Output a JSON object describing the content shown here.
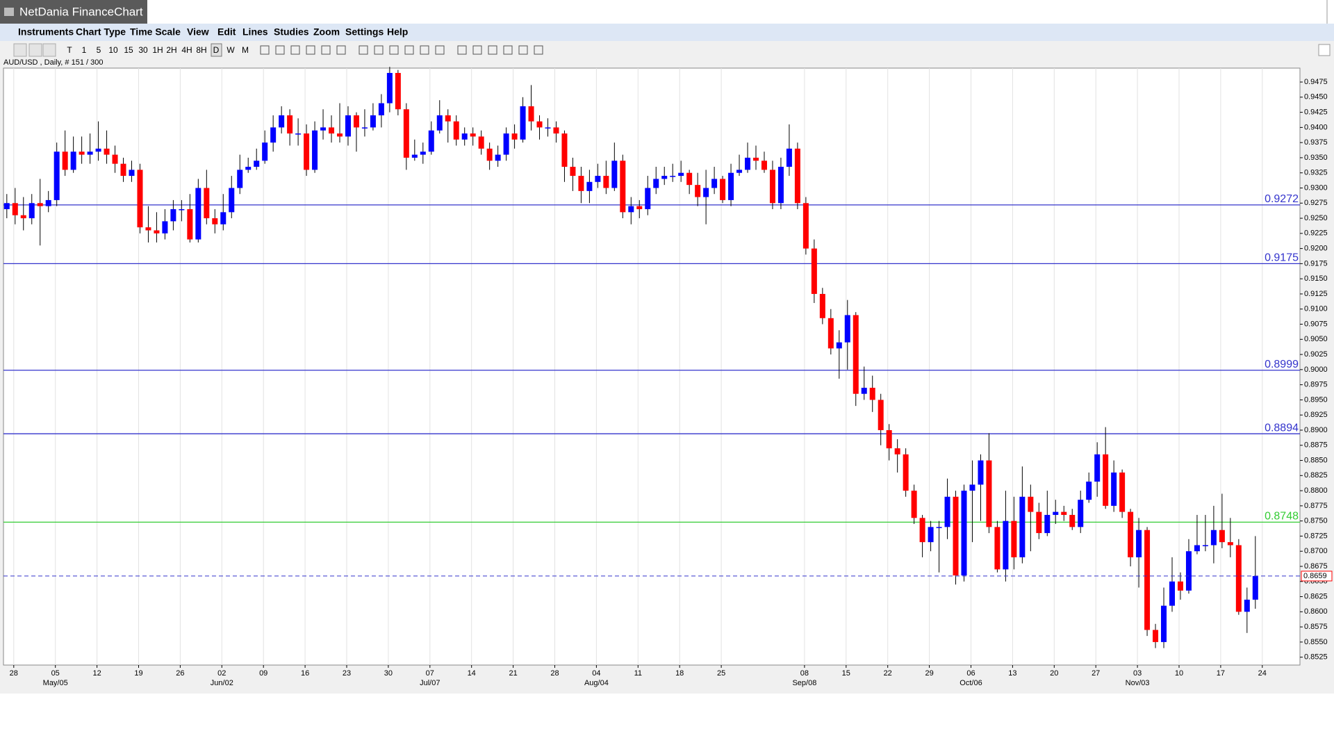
{
  "window": {
    "title": "NetDania FinanceChart",
    "menu": [
      "Instruments",
      "Chart Type",
      "Time Scale",
      "View",
      "Edit",
      "Lines",
      "Studies",
      "Zoom",
      "Settings",
      "Help"
    ],
    "timeframes": [
      "T",
      "1",
      "5",
      "10",
      "15",
      "30",
      "1H",
      "2H",
      "4H",
      "8H",
      "D",
      "W",
      "M"
    ]
  },
  "chart_data": {
    "type": "candlestick",
    "title": "AUD/USD , Daily, # 151 / 300",
    "up_color": "#0000ff",
    "down_color": "#ff0000",
    "categories": [
      "28",
      null,
      null,
      null,
      null,
      "05",
      null,
      null,
      null,
      null,
      "12",
      null,
      null,
      null,
      null,
      "19",
      null,
      null,
      null,
      null,
      "26",
      null,
      null,
      null,
      null,
      "02",
      null,
      null,
      null,
      null,
      "09",
      null,
      null,
      null,
      null,
      "16",
      null,
      null,
      null,
      null,
      "23",
      null,
      null,
      null,
      null,
      "30",
      null,
      null,
      null,
      null,
      "07",
      null,
      null,
      null,
      null,
      "14",
      null,
      null,
      null,
      null,
      "21",
      null,
      null,
      null,
      null,
      "28",
      null,
      null,
      null,
      null,
      "04",
      null,
      null,
      null,
      null,
      "11",
      null,
      null,
      null,
      null,
      "18",
      null,
      null,
      null,
      null,
      "25",
      null,
      null,
      null,
      null,
      null,
      null,
      null,
      null,
      null,
      "08",
      null,
      null,
      null,
      null,
      "15",
      null,
      null,
      null,
      null,
      "22",
      null,
      null,
      null,
      null,
      "29",
      null,
      null,
      null,
      null,
      "06",
      null,
      null,
      null,
      null,
      "13",
      null,
      null,
      null,
      null,
      "20",
      null,
      null,
      null,
      null,
      "27",
      null,
      null,
      null,
      null,
      "03",
      null,
      null,
      null,
      null,
      "10",
      null,
      null,
      null,
      null,
      "17",
      null,
      null,
      null,
      null,
      "24"
    ],
    "month_labels": [
      null,
      null,
      null,
      null,
      null,
      "May/05",
      null,
      null,
      null,
      null,
      null,
      null,
      null,
      null,
      null,
      null,
      null,
      null,
      null,
      null,
      null,
      null,
      null,
      null,
      null,
      "Jun/02",
      null,
      null,
      null,
      null,
      null,
      null,
      null,
      null,
      null,
      null,
      null,
      null,
      null,
      null,
      null,
      null,
      null,
      null,
      null,
      null,
      null,
      null,
      null,
      null,
      "Jul/07",
      null,
      null,
      null,
      null,
      null,
      null,
      null,
      null,
      null,
      null,
      null,
      null,
      null,
      null,
      null,
      null,
      null,
      null,
      null,
      "Aug/04",
      null,
      null,
      null,
      null,
      null,
      null,
      null,
      null,
      null,
      null,
      null,
      null,
      null,
      null,
      null,
      null,
      null,
      null,
      null,
      null,
      null,
      null,
      null,
      null,
      "Sep/08",
      null,
      null,
      null,
      null,
      null,
      null,
      null,
      null,
      null,
      null,
      null,
      null,
      null,
      null,
      null,
      null,
      null,
      null,
      null,
      "Oct/06",
      null,
      null,
      null,
      null,
      null,
      null,
      null,
      null,
      null,
      null,
      null,
      null,
      null,
      null,
      null,
      null,
      null,
      null,
      null,
      "Nov/03",
      null,
      null,
      null,
      null,
      null,
      null,
      null,
      null,
      null,
      null,
      null,
      null,
      null,
      null,
      null
    ],
    "open": [
      0.9265,
      0.9275,
      0.9255,
      0.925,
      0.9275,
      0.927,
      0.928,
      0.936,
      0.933,
      0.936,
      0.9355,
      0.936,
      0.9365,
      0.9355,
      0.934,
      0.932,
      0.933,
      0.9235,
      0.923,
      0.9225,
      0.9245,
      0.9265,
      0.9265,
      0.9215,
      0.93,
      0.925,
      0.924,
      0.926,
      0.93,
      0.933,
      0.9335,
      0.9345,
      0.9375,
      0.94,
      0.942,
      0.939,
      0.939,
      0.933,
      0.9395,
      0.94,
      0.939,
      0.9385,
      0.942,
      0.94,
      0.94,
      0.942,
      0.944,
      0.949,
      0.943,
      0.935,
      0.9355,
      0.936,
      0.9395,
      0.942,
      0.941,
      0.938,
      0.939,
      0.9385,
      0.9365,
      0.9345,
      0.9355,
      0.939,
      0.938,
      0.9435,
      0.941,
      0.94,
      0.94,
      0.939,
      0.9335,
      0.932,
      0.9295,
      0.931,
      0.932,
      0.93,
      0.9345,
      0.926,
      0.927,
      0.9265,
      0.93,
      0.9315,
      0.932,
      0.932,
      0.9325,
      0.9305,
      0.9285,
      0.93,
      0.9315,
      0.928,
      0.9325,
      0.933,
      0.935,
      0.9345,
      0.933,
      0.9275,
      0.9335,
      0.9365,
      0.9275,
      0.92,
      0.9125,
      0.9085,
      0.9035,
      0.9045,
      0.909,
      0.896,
      0.897,
      0.895,
      0.89,
      0.887,
      0.886,
      0.88,
      0.8755,
      0.8715,
      0.874,
      0.874,
      0.879,
      0.866,
      0.88,
      0.881,
      0.885,
      0.874,
      0.867,
      0.875,
      0.869,
      0.879,
      0.8765,
      0.873,
      0.876,
      0.8765,
      0.876,
      0.874,
      0.8785,
      0.8815,
      0.886,
      0.8775,
      0.883,
      0.8765,
      0.869,
      0.8735,
      0.857,
      0.855,
      0.861,
      0.865,
      0.8635,
      0.87,
      0.871,
      0.871,
      0.8735,
      0.8715,
      0.871,
      0.86,
      0.862
    ],
    "high": [
      0.929,
      0.93,
      0.9285,
      0.929,
      0.9315,
      0.9295,
      0.9375,
      0.9395,
      0.9385,
      0.9385,
      0.939,
      0.941,
      0.9395,
      0.937,
      0.935,
      0.9345,
      0.934,
      0.927,
      0.926,
      0.9265,
      0.928,
      0.928,
      0.929,
      0.9315,
      0.933,
      0.9265,
      0.929,
      0.932,
      0.9355,
      0.935,
      0.9365,
      0.9395,
      0.942,
      0.9435,
      0.943,
      0.9415,
      0.9405,
      0.941,
      0.943,
      0.942,
      0.944,
      0.9435,
      0.9425,
      0.943,
      0.944,
      0.9455,
      0.95,
      0.9495,
      0.944,
      0.938,
      0.9375,
      0.941,
      0.9445,
      0.943,
      0.942,
      0.94,
      0.94,
      0.9395,
      0.9375,
      0.937,
      0.94,
      0.9405,
      0.945,
      0.947,
      0.942,
      0.9415,
      0.941,
      0.9395,
      0.935,
      0.9335,
      0.933,
      0.934,
      0.9345,
      0.9375,
      0.9355,
      0.9285,
      0.928,
      0.932,
      0.9335,
      0.9335,
      0.934,
      0.9345,
      0.933,
      0.9325,
      0.933,
      0.9335,
      0.932,
      0.934,
      0.9355,
      0.9375,
      0.937,
      0.936,
      0.9345,
      0.935,
      0.9405,
      0.9375,
      0.9285,
      0.9215,
      0.9135,
      0.91,
      0.9065,
      0.9115,
      0.9095,
      0.9005,
      0.899,
      0.896,
      0.891,
      0.8885,
      0.887,
      0.881,
      0.876,
      0.875,
      0.875,
      0.882,
      0.88,
      0.881,
      0.885,
      0.886,
      0.8895,
      0.875,
      0.88,
      0.879,
      0.884,
      0.881,
      0.878,
      0.88,
      0.8785,
      0.8775,
      0.877,
      0.88,
      0.883,
      0.888,
      0.8905,
      0.885,
      0.8835,
      0.877,
      0.8755,
      0.874,
      0.858,
      0.864,
      0.869,
      0.8665,
      0.872,
      0.876,
      0.876,
      0.8775,
      0.8795,
      0.8755,
      0.872,
      0.864,
      0.8725
    ],
    "low": [
      0.925,
      0.924,
      0.923,
      0.924,
      0.9205,
      0.926,
      0.927,
      0.932,
      0.9325,
      0.934,
      0.934,
      0.9345,
      0.934,
      0.9325,
      0.931,
      0.931,
      0.9225,
      0.921,
      0.921,
      0.9215,
      0.923,
      0.9245,
      0.921,
      0.921,
      0.924,
      0.9225,
      0.923,
      0.925,
      0.929,
      0.9325,
      0.933,
      0.934,
      0.936,
      0.939,
      0.937,
      0.937,
      0.932,
      0.9325,
      0.938,
      0.9375,
      0.9375,
      0.937,
      0.936,
      0.9385,
      0.9395,
      0.94,
      0.9425,
      0.942,
      0.933,
      0.9345,
      0.934,
      0.9355,
      0.939,
      0.9375,
      0.937,
      0.937,
      0.937,
      0.9355,
      0.933,
      0.9335,
      0.9345,
      0.9365,
      0.9375,
      0.9395,
      0.938,
      0.9385,
      0.9375,
      0.931,
      0.9295,
      0.9275,
      0.9275,
      0.93,
      0.929,
      0.9295,
      0.925,
      0.924,
      0.925,
      0.9255,
      0.929,
      0.9305,
      0.931,
      0.931,
      0.929,
      0.927,
      0.924,
      0.929,
      0.9275,
      0.927,
      0.932,
      0.9325,
      0.933,
      0.9325,
      0.9265,
      0.9265,
      0.932,
      0.9265,
      0.919,
      0.911,
      0.9075,
      0.9025,
      0.8985,
      0.9,
      0.894,
      0.895,
      0.893,
      0.8875,
      0.885,
      0.883,
      0.879,
      0.8745,
      0.869,
      0.87,
      0.8665,
      0.872,
      0.8645,
      0.865,
      0.8715,
      0.875,
      0.873,
      0.8665,
      0.865,
      0.867,
      0.868,
      0.87,
      0.872,
      0.8725,
      0.8745,
      0.875,
      0.8735,
      0.873,
      0.878,
      0.879,
      0.877,
      0.8765,
      0.8755,
      0.8675,
      0.864,
      0.856,
      0.854,
      0.854,
      0.86,
      0.862,
      0.863,
      0.8695,
      0.87,
      0.868,
      0.8705,
      0.869,
      0.8595,
      0.8565,
      0.8605
    ],
    "close": [
      0.9275,
      0.9255,
      0.925,
      0.9275,
      0.927,
      0.928,
      0.936,
      0.933,
      0.936,
      0.9355,
      0.936,
      0.9365,
      0.9355,
      0.934,
      0.932,
      0.933,
      0.9235,
      0.923,
      0.9225,
      0.9245,
      0.9265,
      0.9265,
      0.9215,
      0.93,
      0.925,
      0.924,
      0.926,
      0.93,
      0.933,
      0.9335,
      0.9345,
      0.9375,
      0.94,
      0.942,
      0.939,
      0.939,
      0.933,
      0.9395,
      0.94,
      0.939,
      0.9385,
      0.942,
      0.94,
      0.94,
      0.942,
      0.944,
      0.949,
      0.943,
      0.935,
      0.9355,
      0.936,
      0.9395,
      0.942,
      0.941,
      0.938,
      0.939,
      0.9385,
      0.9365,
      0.9345,
      0.9355,
      0.939,
      0.938,
      0.9435,
      0.941,
      0.94,
      0.94,
      0.939,
      0.9335,
      0.932,
      0.9295,
      0.931,
      0.932,
      0.93,
      0.9345,
      0.926,
      0.927,
      0.9265,
      0.93,
      0.9315,
      0.932,
      0.932,
      0.9325,
      0.9305,
      0.9285,
      0.93,
      0.9315,
      0.928,
      0.9325,
      0.933,
      0.935,
      0.9345,
      0.933,
      0.9275,
      0.9335,
      0.9365,
      0.9275,
      0.92,
      0.9125,
      0.9085,
      0.9035,
      0.9045,
      0.909,
      0.896,
      0.897,
      0.895,
      0.89,
      0.887,
      0.886,
      0.88,
      0.8755,
      0.8715,
      0.874,
      0.874,
      0.879,
      0.866,
      0.88,
      0.881,
      0.885,
      0.874,
      0.867,
      0.875,
      0.869,
      0.879,
      0.8765,
      0.873,
      0.876,
      0.8765,
      0.876,
      0.874,
      0.8785,
      0.8815,
      0.886,
      0.8775,
      0.883,
      0.8765,
      0.869,
      0.8735,
      0.857,
      0.855,
      0.861,
      0.865,
      0.8635,
      0.87,
      0.871,
      0.871,
      0.8735,
      0.8715,
      0.871,
      0.86,
      0.862,
      0.8659
    ],
    "levels": [
      {
        "value": 0.9272,
        "color": "#3333cc"
      },
      {
        "value": 0.9175,
        "color": "#3333cc"
      },
      {
        "value": 0.8999,
        "color": "#3333cc"
      },
      {
        "value": 0.8894,
        "color": "#3333cc"
      },
      {
        "value": 0.8748,
        "color": "#33cc33"
      }
    ],
    "ylim": [
      0.8512,
      0.9498
    ],
    "yticks": [
      0.8525,
      {
        "value": 0.855,
        "label": "0.8550"
      },
      0.8575,
      {
        "value": 0.86,
        "label": "0.8600"
      },
      0.8625,
      {
        "value": 0.865,
        "label": "0.8650"
      },
      0.8675,
      {
        "value": 0.87,
        "label": "0.8700"
      },
      0.8725,
      {
        "value": 0.875,
        "label": "0.8750"
      },
      0.8775,
      {
        "value": 0.88,
        "label": "0.8800"
      },
      0.8825,
      {
        "value": 0.885,
        "label": "0.8850"
      },
      0.8875,
      {
        "value": 0.89,
        "label": "0.8900"
      },
      0.8925,
      {
        "value": 0.895,
        "label": "0.8950"
      },
      0.8975,
      {
        "value": 0.9,
        "label": "0.9000"
      },
      0.9025,
      {
        "value": 0.905,
        "label": "0.9050"
      },
      0.9075,
      {
        "value": 0.91,
        "label": "0.9100"
      },
      0.9125,
      {
        "value": 0.915,
        "label": "0.9150"
      },
      0.9175,
      {
        "value": 0.92,
        "label": "0.9200"
      },
      0.9225,
      {
        "value": 0.925,
        "label": "0.9250"
      },
      0.9275,
      {
        "value": 0.93,
        "label": "0.9300"
      },
      0.9325,
      {
        "value": 0.935,
        "label": "0.9350"
      },
      0.9375,
      {
        "value": 0.94,
        "label": "0.9400"
      },
      0.9425,
      {
        "value": 0.945,
        "label": "0.9450"
      },
      0.9475
    ],
    "grid": true
  }
}
